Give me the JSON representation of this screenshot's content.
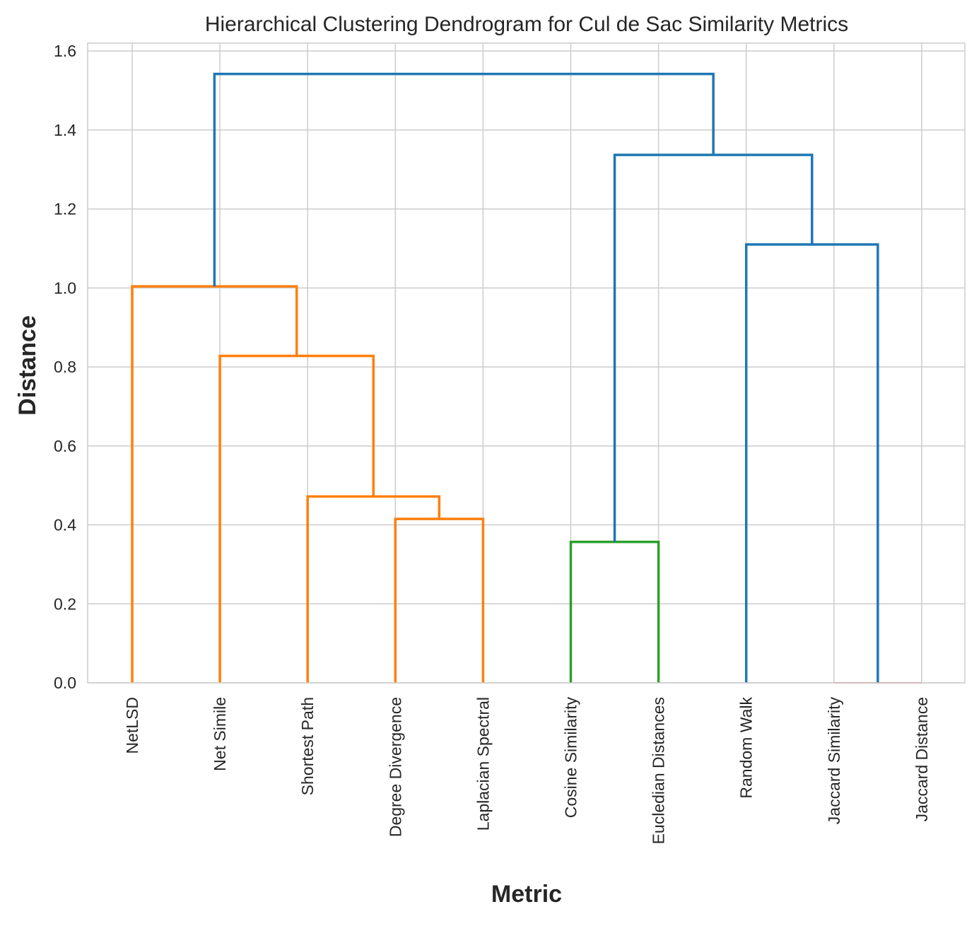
{
  "chart_data": {
    "type": "dendrogram",
    "title": "Hierarchical Clustering Dendrogram for Cul de Sac Similarity Metrics",
    "xlabel": "Metric",
    "ylabel": "Distance",
    "ylim": [
      0,
      1.62
    ],
    "yticks": [
      "0.0",
      "0.2",
      "0.4",
      "0.6",
      "0.8",
      "1.0",
      "1.2",
      "1.4",
      "1.6"
    ],
    "grid": true,
    "leaves": [
      "NetLSD",
      "Net Simile",
      "Shortest Path",
      "Degree Divergence",
      "Laplacian Spectral",
      "Cosine Similarity",
      "Eucledian Distances",
      "Random Walk",
      "Jaccard Similarity",
      "Jaccard Distance"
    ],
    "colors": {
      "orange": "#ff7f0e",
      "green": "#2ca02c",
      "red": "#d62728",
      "blue": "#1f77b4",
      "grid": "#cccccc",
      "text": "#262626"
    },
    "merges": [
      {
        "left": 8,
        "right": 9,
        "height": 0.0,
        "color": "red"
      },
      {
        "left": 3,
        "right": 4,
        "height": 0.415,
        "color": "orange"
      },
      {
        "left": 5,
        "right": 6,
        "height": 0.357,
        "color": "green"
      },
      {
        "left": 2,
        "right": "m1",
        "height": 0.472,
        "color": "orange"
      },
      {
        "left": 1,
        "right": "m3",
        "height": 0.828,
        "color": "orange"
      },
      {
        "left": 0,
        "right": "m4",
        "height": 1.004,
        "color": "orange"
      },
      {
        "left": 7,
        "right": "m0",
        "height": 1.11,
        "color": "blue"
      },
      {
        "left": "m2",
        "right": "m6",
        "height": 1.337,
        "color": "blue"
      },
      {
        "left": "m5",
        "right": "m7",
        "height": 1.542,
        "color": "blue"
      }
    ]
  }
}
